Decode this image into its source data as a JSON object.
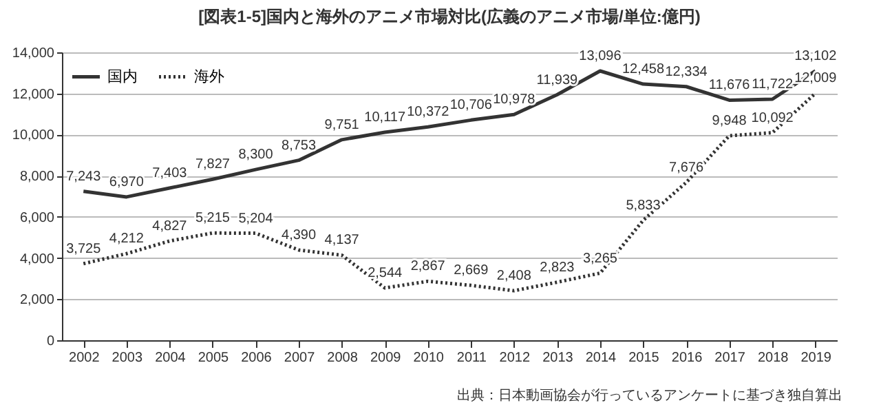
{
  "chart_data": {
    "type": "line",
    "title": "[図表1-5]国内と海外のアニメ市場対比(広義のアニメ市場/単位:億円)",
    "categories": [
      "2002",
      "2003",
      "2004",
      "2005",
      "2006",
      "2007",
      "2008",
      "2009",
      "2010",
      "2011",
      "2012",
      "2013",
      "2014",
      "2015",
      "2016",
      "2017",
      "2018",
      "2019"
    ],
    "series": [
      {
        "name": "国内",
        "color": "#333333",
        "line_style": "solid",
        "values": [
          7243,
          6970,
          7403,
          7827,
          8300,
          8753,
          9751,
          10117,
          10372,
          10706,
          10978,
          11939,
          13096,
          12458,
          12334,
          11676,
          11722,
          13102
        ],
        "value_labels": [
          "7,243",
          "6,970",
          "7,403",
          "7,827",
          "8,300",
          "8,753",
          "9,751",
          "10,117",
          "10,372",
          "10,706",
          "10,978",
          "11,939",
          "13,096",
          "12,458",
          "12,334",
          "11,676",
          "11,722",
          "13,102"
        ]
      },
      {
        "name": "海外",
        "color": "#333333",
        "line_style": "dotted",
        "values": [
          3725,
          4212,
          4827,
          5215,
          5204,
          4390,
          4137,
          2544,
          2867,
          2669,
          2408,
          2823,
          3265,
          5833,
          7676,
          9948,
          10092,
          12009
        ],
        "value_labels": [
          "3,725",
          "4,212",
          "4,827",
          "5,215",
          "5,204",
          "4,390",
          "4,137",
          "2,544",
          "2,867",
          "2,669",
          "2,408",
          "2,823",
          "3,265",
          "5,833",
          "7,676",
          "9,948",
          "10,092",
          "12,009"
        ]
      }
    ],
    "ylim": [
      0,
      14000
    ],
    "yticks": [
      0,
      {
        "value": 2000,
        "label": "2,000"
      },
      {
        "value": 4000,
        "label": "4,000"
      },
      {
        "value": 6000,
        "label": "6,000"
      },
      {
        "value": 8000,
        "label": "8,000"
      },
      {
        "value": 10000,
        "label": "10,000"
      },
      {
        "value": 12000,
        "label": "12,000"
      },
      {
        "value": 14000,
        "label": "14,000"
      }
    ],
    "grid": "y",
    "legend": "top left",
    "annotations": [
      "出典：日本動画協会が行っているアンケートに基づき独自算出"
    ]
  }
}
